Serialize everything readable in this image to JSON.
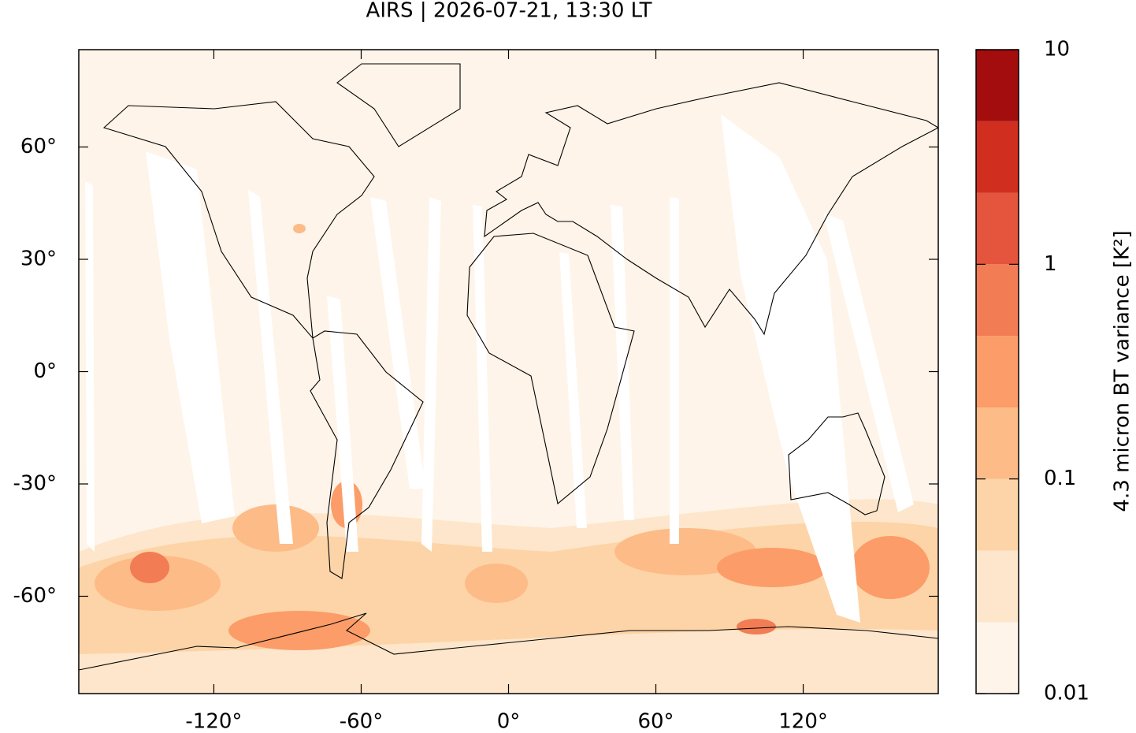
{
  "chart_data": {
    "type": "map",
    "title": "AIRS | 2026-07-21, 13:30 LT",
    "xlim": [
      -175,
      175
    ],
    "ylim": [
      -86,
      86
    ],
    "xticks": [
      {
        "value": -120,
        "label": "-120°"
      },
      {
        "value": -60,
        "label": "-60°"
      },
      {
        "value": 0,
        "label": "0°"
      },
      {
        "value": 60,
        "label": "60°"
      },
      {
        "value": 120,
        "label": "120°"
      }
    ],
    "yticks": [
      {
        "value": -60,
        "label": "-60°"
      },
      {
        "value": -30,
        "label": "-30°"
      },
      {
        "value": 0,
        "label": "0°"
      },
      {
        "value": 30,
        "label": "30°"
      },
      {
        "value": 60,
        "label": "60°"
      }
    ],
    "colorbar": {
      "label": "4.3 micron BT variance [K²]",
      "scale": "log",
      "levels": [
        0.01,
        0.0215,
        0.0464,
        0.1,
        0.215,
        0.464,
        1,
        2.15,
        4.64,
        10
      ],
      "colors": [
        "#fef4e9",
        "#fde6cb",
        "#fdd4a7",
        "#fdbb87",
        "#fc9c68",
        "#f27c54",
        "#e5543d",
        "#d02f1f",
        "#a30d0d"
      ],
      "ticks": [
        0.01,
        0.1,
        1,
        10
      ]
    }
  }
}
